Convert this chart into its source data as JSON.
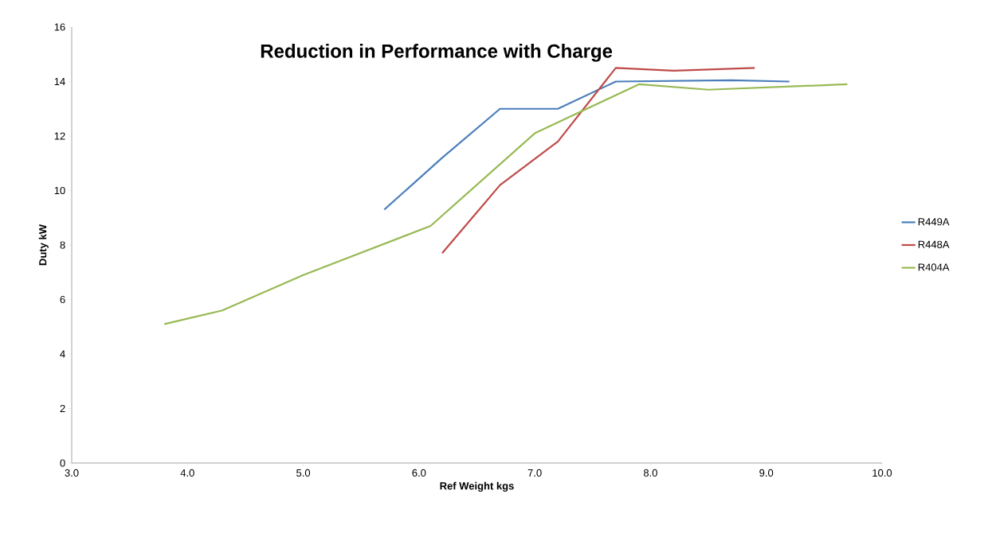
{
  "chart_data": {
    "type": "line",
    "title": "Reduction in Performance with Charge",
    "xlabel": "Ref Weight kgs",
    "ylabel": "Duty kW",
    "xlim": [
      3.0,
      10.0
    ],
    "ylim": [
      0,
      16
    ],
    "xticks": [
      {
        "value": 3,
        "label": "3.0"
      },
      {
        "value": 4,
        "label": "4.0"
      },
      {
        "value": 5,
        "label": "5.0"
      },
      {
        "value": 6,
        "label": "6.0"
      },
      {
        "value": 7,
        "label": "7.0"
      },
      {
        "value": 8,
        "label": "8.0"
      },
      {
        "value": 9,
        "label": "9.0"
      },
      {
        "value": 10,
        "label": "10.0"
      }
    ],
    "yticks": [
      0,
      2,
      4,
      6,
      8,
      10,
      12,
      14,
      16
    ],
    "grid": false,
    "legend": "right",
    "marker": "none",
    "series": [
      {
        "name": "R449A",
        "color": "#4a7ebb",
        "x": [
          5.7,
          6.2,
          6.7,
          7.2,
          7.7,
          8.7,
          9.2
        ],
        "values": [
          9.3,
          11.2,
          13.0,
          13.0,
          14.0,
          14.05,
          14.0
        ]
      },
      {
        "name": "R448A",
        "color": "#be4b48",
        "x": [
          6.2,
          6.7,
          7.2,
          7.7,
          8.2,
          8.9
        ],
        "values": [
          7.7,
          10.2,
          11.8,
          14.5,
          14.4,
          14.5
        ]
      },
      {
        "name": "R404A",
        "color": "#98b954",
        "x": [
          3.8,
          4.3,
          5.0,
          6.1,
          7.0,
          7.9,
          8.5,
          9.7
        ],
        "values": [
          5.1,
          5.6,
          6.9,
          8.7,
          12.1,
          13.9,
          13.7,
          13.9
        ]
      }
    ]
  }
}
